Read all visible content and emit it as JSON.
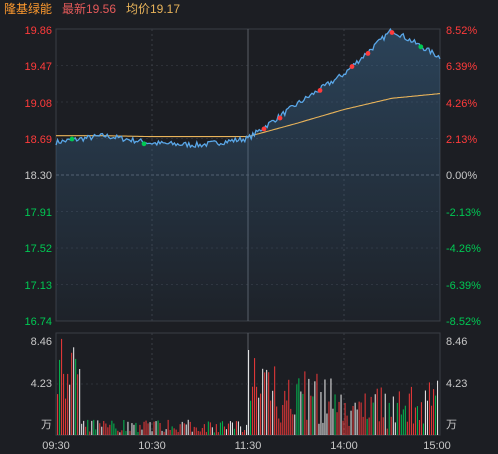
{
  "header": {
    "stock_name": "隆基绿能",
    "latest_label": "最新",
    "latest_value": "19.56",
    "avg_label": "均价",
    "avg_value": "19.17"
  },
  "colors": {
    "background": "#1c1e23",
    "up": "#ff3b3b",
    "down": "#00c853",
    "neutral": "#c8c8c8",
    "price_line": "#5aa7e8",
    "avg_line": "#e8b35a",
    "header_name": "#ff9a2e",
    "header_latest": "#e65a5a",
    "header_avg": "#e8b35a"
  },
  "price_axis": {
    "left_labels": [
      "19.86",
      "19.47",
      "19.08",
      "18.69",
      "18.30",
      "17.91",
      "17.52",
      "17.13",
      "16.74"
    ],
    "right_labels": [
      "8.52%",
      "6.39%",
      "4.26%",
      "2.13%",
      "0.00%",
      "-2.13%",
      "-4.26%",
      "-6.39%",
      "-8.52%"
    ]
  },
  "volume_axis": {
    "left_labels": [
      "8.46",
      "4.23",
      "万"
    ],
    "right_labels": [
      "8.46",
      "4.23",
      "万"
    ]
  },
  "time_labels": [
    "09:30",
    "10:30",
    "11:30",
    "14:00",
    "15:00"
  ],
  "chart_data": {
    "type": "line",
    "x": [
      "09:30",
      "10:00",
      "10:30",
      "11:00",
      "11:30/13:00",
      "13:30",
      "14:00",
      "14:30",
      "15:00"
    ],
    "series": [
      {
        "name": "最新",
        "values": [
          18.65,
          18.72,
          18.64,
          18.62,
          18.69,
          19.05,
          19.38,
          19.85,
          19.56
        ]
      },
      {
        "name": "均价",
        "values": [
          18.72,
          18.72,
          18.71,
          18.71,
          18.71,
          18.85,
          19.0,
          19.12,
          19.17
        ]
      }
    ],
    "ylim": [
      16.74,
      19.86
    ],
    "volume_ylim": [
      0,
      8.46
    ]
  }
}
